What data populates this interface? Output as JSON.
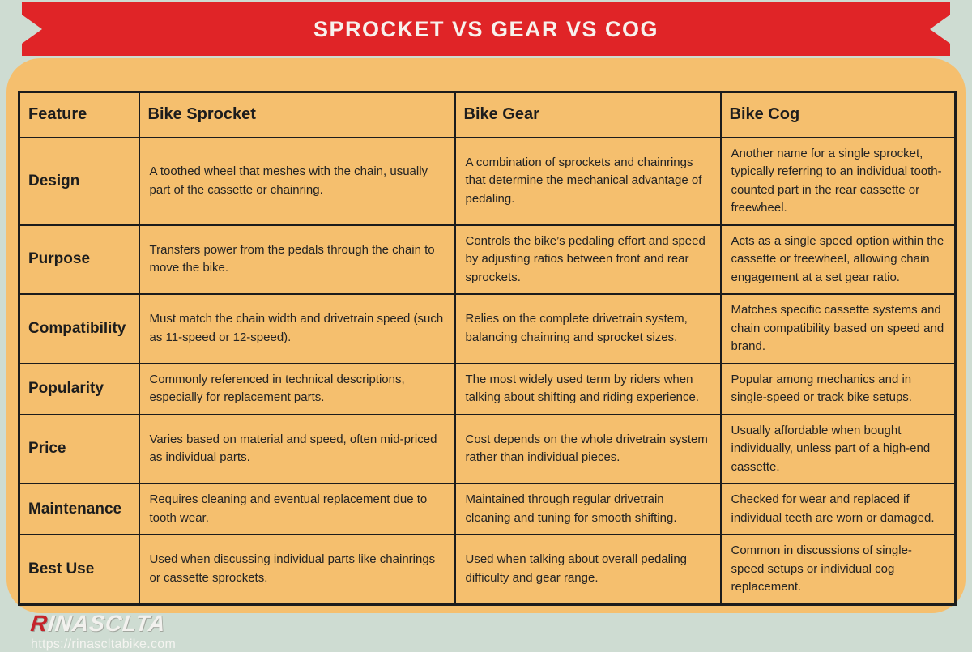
{
  "banner": {
    "title": "SPROCKET VS GEAR VS COG"
  },
  "table": {
    "columns": [
      "Feature",
      "Bike Sprocket",
      "Bike Gear",
      "Bike Cog"
    ],
    "rows": [
      {
        "feature": "Design",
        "sprocket": "A toothed wheel that meshes with the chain, usually part of the cassette or chainring.",
        "gear": "A combination of sprockets and chainrings that determine the mechanical advantage of pedaling.",
        "cog": "Another name for a single sprocket, typically referring to an individual tooth-counted part in the rear cassette or freewheel."
      },
      {
        "feature": "Purpose",
        "sprocket": "Transfers power from the pedals through the chain to move the bike.",
        "gear": "Controls the bike’s pedaling effort and speed by adjusting ratios between front and rear sprockets.",
        "cog": "Acts as a single speed option within the cassette or freewheel, allowing chain engagement at a set gear ratio."
      },
      {
        "feature": "Compatibility",
        "sprocket": "Must match the chain width and drivetrain speed (such as 11-speed or 12-speed).",
        "gear": "Relies on the complete drivetrain system, balancing chainring and sprocket sizes.",
        "cog": "Matches specific cassette systems and chain compatibility based on speed and brand."
      },
      {
        "feature": "Popularity",
        "sprocket": "Commonly referenced in technical descriptions, especially for replacement parts.",
        "gear": "The most widely used term by riders when talking about shifting and riding experience.",
        "cog": "Popular among mechanics and in single-speed or track bike setups."
      },
      {
        "feature": "Price",
        "sprocket": "Varies based on material and speed, often mid-priced as individual parts.",
        "gear": "Cost depends on the whole drivetrain system rather than individual pieces.",
        "cog": "Usually affordable when bought individually, unless part of a high-end cassette."
      },
      {
        "feature": "Maintenance",
        "sprocket": "Requires cleaning and eventual replacement due to tooth wear.",
        "gear": "Maintained through regular drivetrain cleaning and tuning for smooth shifting.",
        "cog": "Checked for wear and replaced if individual teeth are worn or damaged."
      },
      {
        "feature": "Best Use",
        "sprocket": "Used when discussing individual parts like chainrings or cassette sprockets.",
        "gear": "Used when talking about overall pedaling difficulty and gear range.",
        "cog": "Common in discussions of single-speed setups or individual cog replacement."
      }
    ]
  },
  "footer": {
    "brand_first_letter": "R",
    "brand_rest": "INASCLTA",
    "url": "https://rinascltabike.com"
  },
  "colors": {
    "ribbon_red": "#e02427",
    "panel_orange": "#f5bf6e",
    "background_sage": "#cedcd2",
    "border_black": "#1c1c1c",
    "logo_red": "#c5232a"
  }
}
